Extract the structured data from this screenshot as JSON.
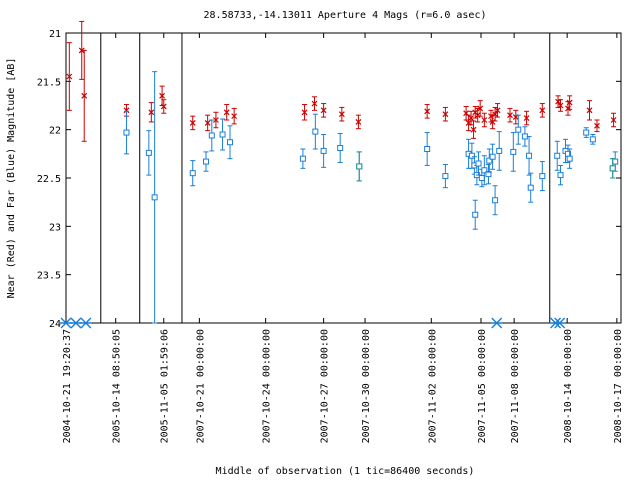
{
  "chart_data": {
    "type": "scatter",
    "title": "28.58733,-14.13011   Aperture 4 Mags (r=6.0 asec)",
    "xlabel": "Middle of observation (1 tic=86400 seconds)",
    "ylabel": "Near (Red) and Far (Blue) Magnitude [AB]",
    "y_axis": {
      "inverted": true,
      "ylim": [
        21,
        24
      ],
      "ticks": [
        "21",
        "21.5",
        "22",
        "22.5",
        "23",
        "23.5",
        "24"
      ]
    },
    "x_ticks": [
      "2004-10-21 19:20:37",
      "2005-10-14 08:50:05",
      "2005-11-05 01:59:06",
      "2007-10-21 00:00:00",
      "2007-10-24 00:00:00",
      "2007-10-27 00:00:00",
      "2007-10-30 00:00:00",
      "2007-11-02 00:00:00",
      "2007-11-05 00:00:00",
      "2007-11-08 00:00:00",
      "2008-10-14 00:00:00",
      "2008-10-17 00:00:00"
    ],
    "grid": false,
    "colors": {
      "near": "#cc0000",
      "far": "#1a7ed8",
      "far_alt": "#1f9a8a"
    },
    "series": [
      {
        "color": "#cc0000",
        "marker": "x",
        "points": [
          {
            "x": 0.4,
            "y": 21.45,
            "err": 0.35
          },
          {
            "x": 1.9,
            "y": 21.18,
            "err": 0.3
          },
          {
            "x": 2.2,
            "y": 21.65,
            "err": 0.47
          },
          {
            "x": 7.3,
            "y": 21.8,
            "err": 0.06
          },
          {
            "x": 10.3,
            "y": 21.82,
            "err": 0.1
          },
          {
            "x": 11.6,
            "y": 21.65,
            "err": 0.1
          },
          {
            "x": 11.8,
            "y": 21.76,
            "err": 0.07
          },
          {
            "x": 15.3,
            "y": 21.93,
            "err": 0.07
          },
          {
            "x": 17.1,
            "y": 21.93,
            "err": 0.08
          },
          {
            "x": 18.1,
            "y": 21.9,
            "err": 0.08
          },
          {
            "x": 19.4,
            "y": 21.82,
            "err": 0.08
          },
          {
            "x": 20.3,
            "y": 21.86,
            "err": 0.08
          },
          {
            "x": 28.8,
            "y": 21.82,
            "err": 0.08
          },
          {
            "x": 30.0,
            "y": 21.73,
            "err": 0.07
          },
          {
            "x": 31.1,
            "y": 21.8,
            "err": 0.07
          },
          {
            "x": 33.3,
            "y": 21.84,
            "err": 0.07
          },
          {
            "x": 35.3,
            "y": 21.92,
            "err": 0.07
          },
          {
            "x": 43.6,
            "y": 21.81,
            "err": 0.07
          },
          {
            "x": 45.8,
            "y": 21.84,
            "err": 0.07
          },
          {
            "x": 48.3,
            "y": 21.83,
            "err": 0.07
          },
          {
            "x": 48.6,
            "y": 21.93,
            "err": 0.08
          },
          {
            "x": 48.9,
            "y": 21.88,
            "err": 0.07
          },
          {
            "x": 49.2,
            "y": 22.0,
            "err": 0.09
          },
          {
            "x": 49.4,
            "y": 21.82,
            "err": 0.06
          },
          {
            "x": 49.7,
            "y": 21.85,
            "err": 0.07
          },
          {
            "x": 50.0,
            "y": 21.78,
            "err": 0.08
          },
          {
            "x": 50.5,
            "y": 21.9,
            "err": 0.07
          },
          {
            "x": 51.3,
            "y": 21.86,
            "err": 0.06
          },
          {
            "x": 51.5,
            "y": 21.92,
            "err": 0.07
          },
          {
            "x": 51.8,
            "y": 21.84,
            "err": 0.07
          },
          {
            "x": 52.1,
            "y": 21.8,
            "err": 0.07
          },
          {
            "x": 53.6,
            "y": 21.85,
            "err": 0.07
          },
          {
            "x": 54.3,
            "y": 21.87,
            "err": 0.07
          },
          {
            "x": 55.6,
            "y": 21.88,
            "err": 0.07
          },
          {
            "x": 57.5,
            "y": 21.8,
            "err": 0.07
          },
          {
            "x": 59.4,
            "y": 21.71,
            "err": 0.06
          },
          {
            "x": 59.7,
            "y": 21.75,
            "err": 0.06
          },
          {
            "x": 60.6,
            "y": 21.78,
            "err": 0.07
          },
          {
            "x": 60.8,
            "y": 21.72,
            "err": 0.07
          },
          {
            "x": 63.2,
            "y": 21.8,
            "err": 0.1
          },
          {
            "x": 64.1,
            "y": 21.96,
            "err": 0.06
          },
          {
            "x": 66.1,
            "y": 21.9,
            "err": 0.07
          }
        ]
      },
      {
        "color": "#1a7ed8",
        "marker": "square",
        "points": [
          {
            "x": 7.3,
            "y": 22.03,
            "err": 0.22
          },
          {
            "x": 10.0,
            "y": 22.24,
            "err": 0.23
          },
          {
            "x": 10.7,
            "y": 22.7,
            "err": 1.3
          },
          {
            "x": 15.3,
            "y": 22.45,
            "err": 0.13
          },
          {
            "x": 16.9,
            "y": 22.33,
            "err": 0.1
          },
          {
            "x": 17.6,
            "y": 22.06,
            "err": 0.16
          },
          {
            "x": 18.9,
            "y": 22.05,
            "err": 0.16
          },
          {
            "x": 19.8,
            "y": 22.13,
            "err": 0.17
          },
          {
            "x": 28.6,
            "y": 22.3,
            "err": 0.1
          },
          {
            "x": 30.1,
            "y": 22.02,
            "err": 0.18
          },
          {
            "x": 31.1,
            "y": 22.22,
            "err": 0.17
          },
          {
            "x": 33.1,
            "y": 22.19,
            "err": 0.15
          },
          {
            "x": 35.4,
            "y": 22.38,
            "err": 0.15
          },
          {
            "x": 43.6,
            "y": 22.2,
            "err": 0.17
          },
          {
            "x": 45.8,
            "y": 22.48,
            "err": 0.12
          },
          {
            "x": 48.6,
            "y": 22.25,
            "err": 0.15
          },
          {
            "x": 49.0,
            "y": 22.27,
            "err": 0.13
          },
          {
            "x": 49.3,
            "y": 22.37,
            "err": 0.09
          },
          {
            "x": 49.4,
            "y": 22.88,
            "err": 0.15
          },
          {
            "x": 49.6,
            "y": 22.47,
            "err": 0.1
          },
          {
            "x": 49.8,
            "y": 22.35,
            "err": 0.12
          },
          {
            "x": 50.2,
            "y": 22.5,
            "err": 0.09
          },
          {
            "x": 50.5,
            "y": 22.42,
            "err": 0.15
          },
          {
            "x": 51.0,
            "y": 22.46,
            "err": 0.1
          },
          {
            "x": 51.1,
            "y": 22.32,
            "err": 0.12
          },
          {
            "x": 51.5,
            "y": 22.28,
            "err": 0.13
          },
          {
            "x": 51.8,
            "y": 22.73,
            "err": 0.15
          },
          {
            "x": 52.3,
            "y": 22.22,
            "err": 0.2
          },
          {
            "x": 54.0,
            "y": 22.23,
            "err": 0.2
          },
          {
            "x": 54.6,
            "y": 22.0,
            "err": 0.15
          },
          {
            "x": 55.4,
            "y": 22.07,
            "err": 0.1
          },
          {
            "x": 55.9,
            "y": 22.27,
            "err": 0.2
          },
          {
            "x": 56.1,
            "y": 22.6,
            "err": 0.15
          },
          {
            "x": 57.5,
            "y": 22.48,
            "err": 0.15
          },
          {
            "x": 59.3,
            "y": 22.27,
            "err": 0.15
          },
          {
            "x": 59.7,
            "y": 22.47,
            "err": 0.1
          },
          {
            "x": 60.3,
            "y": 22.22,
            "err": 0.12
          },
          {
            "x": 60.6,
            "y": 22.25,
            "err": 0.09
          },
          {
            "x": 60.8,
            "y": 22.3,
            "err": 0.1
          },
          {
            "x": 62.8,
            "y": 22.03,
            "err": 0.05
          },
          {
            "x": 63.6,
            "y": 22.1,
            "err": 0.05
          },
          {
            "x": 66.0,
            "y": 22.4,
            "err": 0.1
          },
          {
            "x": 66.3,
            "y": 22.33,
            "err": 0.1
          }
        ]
      },
      {
        "color": "#1f9a8a",
        "marker": "square",
        "points": [
          {
            "x": 35.4,
            "y": 22.38,
            "err": 0.15
          },
          {
            "x": 66.0,
            "y": 22.4,
            "err": 0.1
          }
        ]
      }
    ],
    "limit_markers": [
      {
        "x": 0.0
      },
      {
        "x": 1.2
      },
      {
        "x": 2.4
      },
      {
        "x": 52.0
      },
      {
        "x": 59.1
      },
      {
        "x": 59.6
      }
    ],
    "segment_dividers": [
      4.2,
      8.9,
      14.0,
      58.4
    ],
    "x_tick_positions": [
      0,
      6,
      11.8,
      16.1,
      24.1,
      31.1,
      36.1,
      44.1,
      50.1,
      54.1,
      60.5,
      66.5
    ],
    "x_range": [
      0,
      67
    ]
  }
}
